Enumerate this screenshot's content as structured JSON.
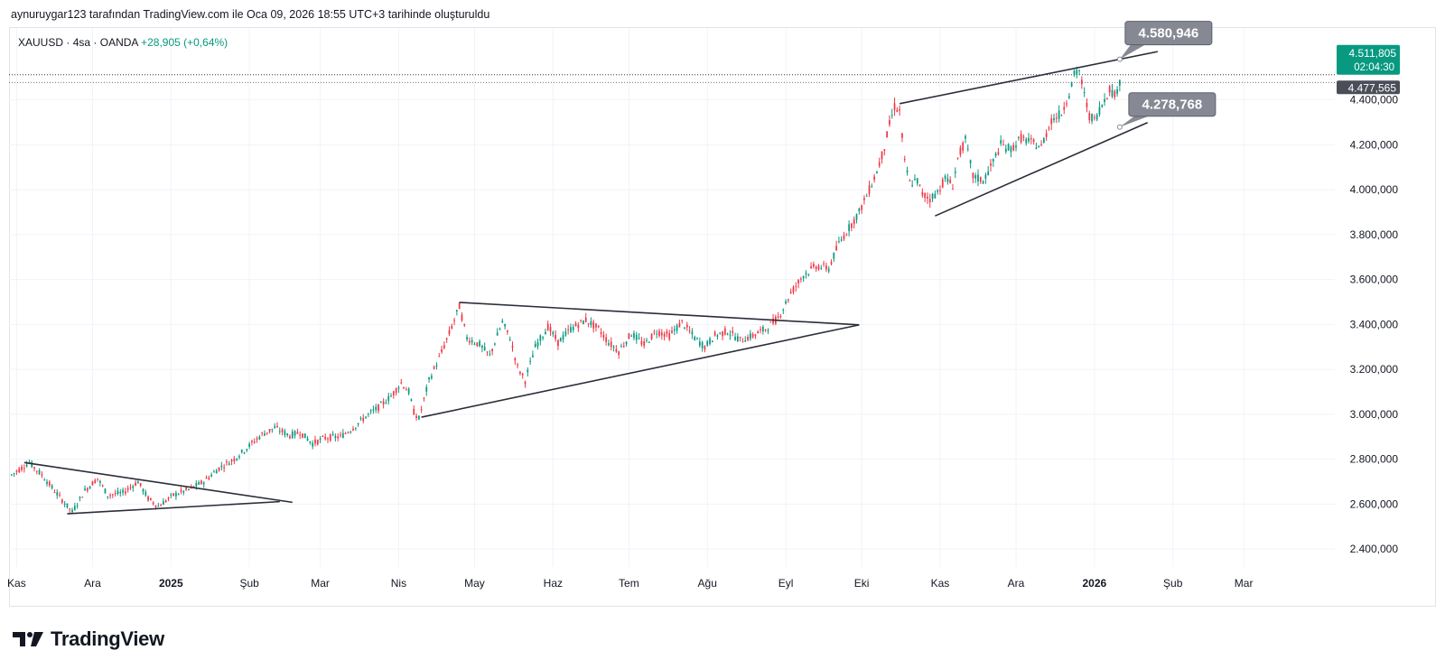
{
  "header": {
    "credit": "aynuruygar123 tarafından TradingView.com ile Oca 09, 2026 18:55 UTC+3 tarihinde oluşturuldu"
  },
  "symbol": {
    "name": "XAUUSD",
    "interval": "4sa",
    "source": "OANDA",
    "change": "+28,905 (+0,64%)"
  },
  "brand": {
    "label": "TradingView",
    "icon": "tradingview-logo-icon"
  },
  "colors": {
    "up": "#089981",
    "down": "#f23645",
    "line": "#2a2e39",
    "grid": "#f0f3fa",
    "callout": "#868993",
    "last_price_bg": "#089981",
    "prev_price_bg": "#4a4e59"
  },
  "chart_data": {
    "type": "candlestick",
    "symbol": "XAUUSD",
    "interval": "4sa",
    "ylim": [
      2320,
      4720
    ],
    "y_ticks": [
      {
        "value": 2400,
        "label": "2.400,000"
      },
      {
        "value": 2600,
        "label": "2.600,000"
      },
      {
        "value": 2800,
        "label": "2.800,000"
      },
      {
        "value": 3000,
        "label": "3.000,000"
      },
      {
        "value": 3200,
        "label": "3.200,000"
      },
      {
        "value": 3400,
        "label": "3.400,000"
      },
      {
        "value": 3600,
        "label": "3.600,000"
      },
      {
        "value": 3800,
        "label": "3.800,000"
      },
      {
        "value": 4000,
        "label": "4.000,000"
      },
      {
        "value": 4200,
        "label": "4.200,000"
      },
      {
        "value": 4400,
        "label": "4.400,000"
      }
    ],
    "x_range_days": [
      -3,
      521
    ],
    "x_ticks": [
      {
        "day": 0,
        "label": "Kas",
        "bold": false
      },
      {
        "day": 30,
        "label": "Ara",
        "bold": false
      },
      {
        "day": 61,
        "label": "2025",
        "bold": true
      },
      {
        "day": 92,
        "label": "Şub",
        "bold": false
      },
      {
        "day": 120,
        "label": "Mar",
        "bold": false
      },
      {
        "day": 151,
        "label": "Nis",
        "bold": false
      },
      {
        "day": 181,
        "label": "May",
        "bold": false
      },
      {
        "day": 212,
        "label": "Haz",
        "bold": false
      },
      {
        "day": 242,
        "label": "Tem",
        "bold": false
      },
      {
        "day": 273,
        "label": "Ağu",
        "bold": false
      },
      {
        "day": 304,
        "label": "Eyl",
        "bold": false
      },
      {
        "day": 334,
        "label": "Eki",
        "bold": false
      },
      {
        "day": 365,
        "label": "Kas",
        "bold": false
      },
      {
        "day": 395,
        "label": "Ara",
        "bold": false
      },
      {
        "day": 426,
        "label": "2026",
        "bold": true
      },
      {
        "day": 457,
        "label": "Şub",
        "bold": false
      },
      {
        "day": 485,
        "label": "Mar",
        "bold": false
      }
    ],
    "price_path": [
      [
        -2,
        2730
      ],
      [
        5,
        2785
      ],
      [
        10,
        2730
      ],
      [
        16,
        2645
      ],
      [
        22,
        2565
      ],
      [
        27,
        2660
      ],
      [
        32,
        2715
      ],
      [
        36,
        2640
      ],
      [
        42,
        2650
      ],
      [
        48,
        2700
      ],
      [
        52,
        2625
      ],
      [
        56,
        2590
      ],
      [
        62,
        2640
      ],
      [
        68,
        2665
      ],
      [
        74,
        2700
      ],
      [
        80,
        2760
      ],
      [
        86,
        2800
      ],
      [
        92,
        2860
      ],
      [
        97,
        2910
      ],
      [
        102,
        2940
      ],
      [
        108,
        2905
      ],
      [
        112,
        2920
      ],
      [
        117,
        2870
      ],
      [
        122,
        2895
      ],
      [
        128,
        2900
      ],
      [
        133,
        2940
      ],
      [
        138,
        2990
      ],
      [
        143,
        3030
      ],
      [
        148,
        3080
      ],
      [
        152,
        3140
      ],
      [
        155,
        3100
      ],
      [
        157,
        3010
      ],
      [
        159,
        2980
      ],
      [
        163,
        3150
      ],
      [
        167,
        3250
      ],
      [
        171,
        3360
      ],
      [
        175,
        3480
      ],
      [
        178,
        3340
      ],
      [
        183,
        3310
      ],
      [
        187,
        3260
      ],
      [
        192,
        3410
      ],
      [
        195,
        3340
      ],
      [
        198,
        3210
      ],
      [
        201,
        3150
      ],
      [
        205,
        3300
      ],
      [
        210,
        3390
      ],
      [
        214,
        3320
      ],
      [
        219,
        3380
      ],
      [
        225,
        3420
      ],
      [
        230,
        3380
      ],
      [
        234,
        3320
      ],
      [
        238,
        3280
      ],
      [
        243,
        3360
      ],
      [
        248,
        3310
      ],
      [
        253,
        3370
      ],
      [
        258,
        3350
      ],
      [
        263,
        3410
      ],
      [
        268,
        3340
      ],
      [
        272,
        3300
      ],
      [
        276,
        3350
      ],
      [
        281,
        3370
      ],
      [
        286,
        3330
      ],
      [
        291,
        3350
      ],
      [
        296,
        3380
      ],
      [
        301,
        3430
      ],
      [
        306,
        3540
      ],
      [
        311,
        3620
      ],
      [
        316,
        3660
      ],
      [
        321,
        3650
      ],
      [
        325,
        3760
      ],
      [
        329,
        3830
      ],
      [
        333,
        3900
      ],
      [
        337,
        4000
      ],
      [
        340,
        4080
      ],
      [
        343,
        4190
      ],
      [
        345,
        4290
      ],
      [
        347,
        4370
      ],
      [
        349,
        4350
      ],
      [
        351,
        4120
      ],
      [
        353,
        4030
      ],
      [
        356,
        4040
      ],
      [
        358,
        3980
      ],
      [
        361,
        3960
      ],
      [
        364,
        3990
      ],
      [
        367,
        4050
      ],
      [
        370,
        4020
      ],
      [
        372,
        4140
      ],
      [
        375,
        4220
      ],
      [
        378,
        4060
      ],
      [
        382,
        4040
      ],
      [
        385,
        4100
      ],
      [
        389,
        4200
      ],
      [
        393,
        4180
      ],
      [
        397,
        4230
      ],
      [
        401,
        4210
      ],
      [
        405,
        4190
      ],
      [
        409,
        4310
      ],
      [
        413,
        4340
      ],
      [
        416,
        4430
      ],
      [
        418,
        4510
      ],
      [
        420,
        4530
      ],
      [
        422,
        4420
      ],
      [
        424,
        4330
      ],
      [
        426,
        4310
      ],
      [
        429,
        4380
      ],
      [
        432,
        4450
      ],
      [
        434,
        4420
      ],
      [
        436,
        4478
      ]
    ],
    "trend_lines": [
      {
        "name": "triangle-1-upper",
        "from": {
          "day": 3,
          "price": 2785
        },
        "to": {
          "day": 109,
          "price": 2608
        }
      },
      {
        "name": "triangle-1-lower",
        "from": {
          "day": 20,
          "price": 2557
        },
        "to": {
          "day": 104,
          "price": 2611
        }
      },
      {
        "name": "triangle-2-upper",
        "from": {
          "day": 175,
          "price": 3498
        },
        "to": {
          "day": 333,
          "price": 3398
        }
      },
      {
        "name": "triangle-2-lower",
        "from": {
          "day": 160,
          "price": 2987
        },
        "to": {
          "day": 333,
          "price": 3398
        }
      },
      {
        "name": "wedge-upper",
        "from": {
          "day": 349,
          "price": 4383
        },
        "to": {
          "day": 451,
          "price": 4615
        }
      },
      {
        "name": "wedge-lower",
        "from": {
          "day": 363,
          "price": 3883
        },
        "to": {
          "day": 447,
          "price": 4299
        }
      }
    ],
    "callouts": [
      {
        "label": "4.580,946",
        "anchor": {
          "day": 436,
          "price": 4581
        }
      },
      {
        "label": "4.278,768",
        "anchor": {
          "day": 436,
          "price": 4279
        }
      }
    ],
    "price_tags": [
      {
        "kind": "last",
        "value": 4511.805,
        "label": "4.511,805",
        "countdown": "02:04:30"
      },
      {
        "kind": "previous",
        "value": 4477.565,
        "label": "4.477,565"
      }
    ]
  }
}
